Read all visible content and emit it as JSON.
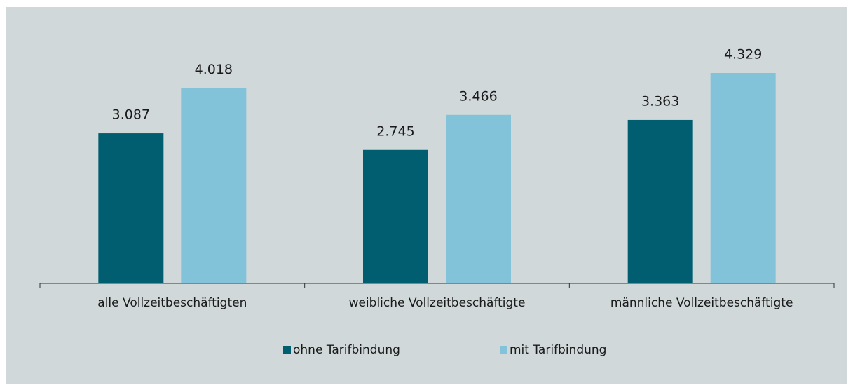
{
  "chart_data": {
    "type": "bar",
    "categories": [
      "alle Vollzeitbeschäftigten",
      "weibliche Vollzeitbeschäftigte",
      "männliche Vollzeitbeschäftigte"
    ],
    "series": [
      {
        "name": "ohne Tarifbindung",
        "color": "#005e70",
        "values": [
          3087,
          2745,
          3363
        ],
        "value_labels": [
          "3.087",
          "2.745",
          "3.363"
        ]
      },
      {
        "name": "mit Tarifbindung",
        "color": "#82c3da",
        "values": [
          4018,
          3466,
          4329
        ],
        "value_labels": [
          "4.018",
          "3.466",
          "4.329"
        ]
      }
    ],
    "ylim": [
      0,
      5000
    ]
  }
}
